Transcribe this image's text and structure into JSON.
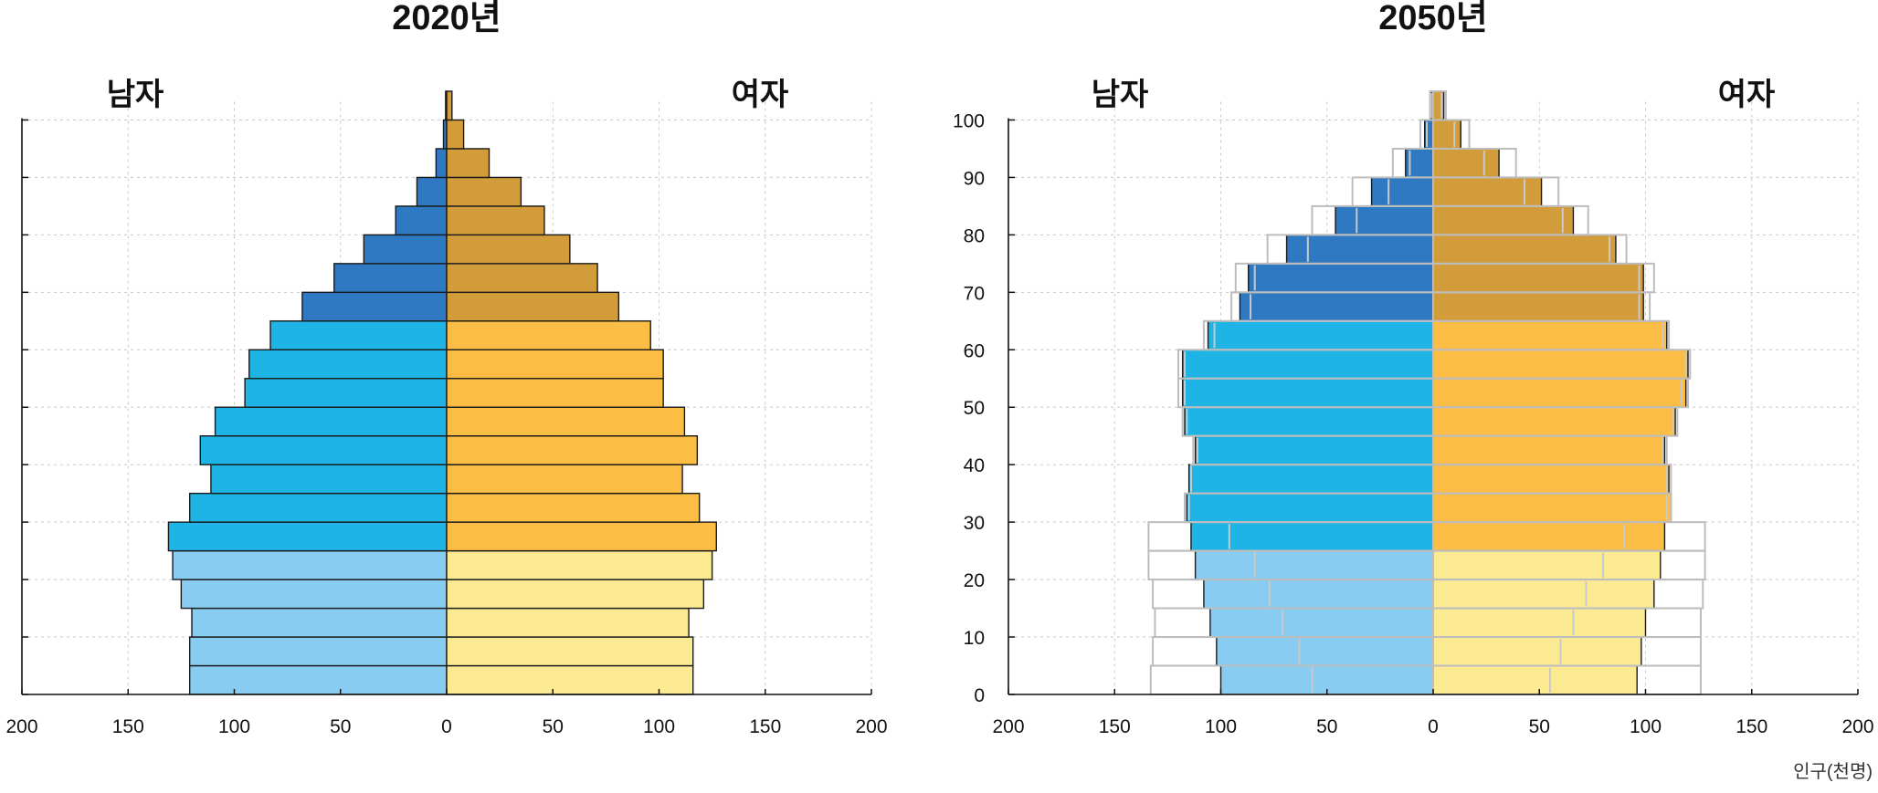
{
  "unit_label": "인구(천명)",
  "chart_data": [
    {
      "type": "bar",
      "orientation": "horizontal",
      "title": "2020년",
      "left_label": "남자",
      "right_label": "여자",
      "xlim": [
        -200,
        200
      ],
      "x_ticks": [
        200,
        150,
        100,
        50,
        0,
        50,
        100,
        150,
        200
      ],
      "y_ticks": [],
      "grid": true,
      "age_group_size": 5,
      "age_groups": [
        "0-4",
        "5-9",
        "10-14",
        "15-19",
        "20-24",
        "25-29",
        "30-34",
        "35-39",
        "40-44",
        "45-49",
        "50-54",
        "55-59",
        "60-64",
        "65-69",
        "70-74",
        "75-79",
        "80-84",
        "85-89",
        "90-94",
        "95-99",
        "100+"
      ],
      "series": [
        {
          "name": "남자",
          "values": [
            121,
            121,
            120,
            125,
            129,
            131,
            121,
            111,
            116,
            109,
            95,
            93,
            83,
            68,
            53,
            39,
            24,
            14,
            5,
            1.5,
            0.5
          ]
        },
        {
          "name": "여자",
          "values": [
            116,
            116,
            114,
            121,
            125,
            127,
            119,
            111,
            118,
            112,
            102,
            102,
            96,
            81,
            71,
            58,
            46,
            35,
            20,
            8,
            2.5
          ]
        }
      ],
      "colors": {
        "male": [
          "#88cdf1",
          "#88cdf1",
          "#88cdf1",
          "#88cdf1",
          "#88cdf1",
          "#1fb4e6",
          "#1fb4e6",
          "#1fb4e6",
          "#1fb4e6",
          "#1fb4e6",
          "#1fb4e6",
          "#1fb4e6",
          "#1fb4e6",
          "#2f79c2",
          "#2f79c2",
          "#2f79c2",
          "#2f79c2",
          "#2f79c2",
          "#2f79c2",
          "#2f79c2",
          "#2f79c2"
        ],
        "female": [
          "#fcea92",
          "#fcea92",
          "#fcea92",
          "#fcea92",
          "#fcea92",
          "#fbbd43",
          "#fbbd43",
          "#fbbd43",
          "#fbbd43",
          "#fbbd43",
          "#fbbd43",
          "#fbbd43",
          "#fbbd43",
          "#d39c3a",
          "#d39c3a",
          "#d39c3a",
          "#d39c3a",
          "#d39c3a",
          "#d39c3a",
          "#d39c3a",
          "#d39c3a"
        ]
      }
    },
    {
      "type": "bar",
      "orientation": "horizontal",
      "title": "2050년",
      "left_label": "남자",
      "right_label": "여자",
      "xlim": [
        -200,
        200
      ],
      "x_ticks": [
        200,
        150,
        100,
        50,
        0,
        50,
        100,
        150,
        200
      ],
      "y_ticks": [
        0,
        10,
        20,
        30,
        40,
        50,
        60,
        70,
        80,
        90,
        100
      ],
      "grid": true,
      "age_group_size": 5,
      "age_groups": [
        "0-4",
        "5-9",
        "10-14",
        "15-19",
        "20-24",
        "25-29",
        "30-34",
        "35-39",
        "40-44",
        "45-49",
        "50-54",
        "55-59",
        "60-64",
        "65-69",
        "70-74",
        "75-79",
        "80-84",
        "85-89",
        "90-94",
        "95-99",
        "100+"
      ],
      "series": [
        {
          "name": "남자",
          "values": [
            100,
            102,
            105,
            108,
            112,
            114,
            116,
            115,
            112,
            117,
            118,
            118,
            106,
            91,
            87,
            69,
            46,
            29,
            13,
            4,
            1
          ]
        },
        {
          "name": "여자",
          "values": [
            96,
            98,
            100,
            104,
            107,
            109,
            112,
            111,
            109,
            114,
            119,
            120,
            110,
            99,
            99,
            86,
            66,
            51,
            31,
            13,
            5
          ]
        },
        {
          "name": "",
          "style": "outline",
          "values": [
            133,
            132,
            131,
            132,
            134,
            134,
            117,
            114,
            113,
            118,
            120,
            120,
            108,
            95,
            93,
            78,
            57,
            38,
            19,
            6,
            1.5
          ]
        },
        {
          "name": "",
          "style": "outline",
          "values": [
            126,
            126,
            126,
            127,
            128,
            128,
            112,
            112,
            110,
            115,
            120,
            121,
            111,
            102,
            104,
            91,
            73,
            59,
            39,
            17,
            6
          ]
        },
        {
          "name": "",
          "style": "inner-line",
          "values": [
            57,
            63,
            71,
            77,
            84,
            96,
            115,
            114,
            111,
            116,
            117,
            117,
            103,
            86,
            84,
            59,
            36,
            21,
            11,
            3,
            1
          ]
        },
        {
          "name": "",
          "style": "inner-line",
          "values": [
            55,
            60,
            66,
            72,
            80,
            90,
            110,
            110,
            108,
            113,
            117,
            119,
            108,
            97,
            97,
            83,
            61,
            43,
            24,
            10,
            4
          ]
        }
      ],
      "colors": {
        "male": [
          "#88cdf1",
          "#88cdf1",
          "#88cdf1",
          "#88cdf1",
          "#88cdf1",
          "#1fb4e6",
          "#1fb4e6",
          "#1fb4e6",
          "#1fb4e6",
          "#1fb4e6",
          "#1fb4e6",
          "#1fb4e6",
          "#1fb4e6",
          "#2f79c2",
          "#2f79c2",
          "#2f79c2",
          "#2f79c2",
          "#2f79c2",
          "#2f79c2",
          "#2f79c2",
          "#2f79c2"
        ],
        "female": [
          "#fcea92",
          "#fcea92",
          "#fcea92",
          "#fcea92",
          "#fcea92",
          "#fbbd43",
          "#fbbd43",
          "#fbbd43",
          "#fbbd43",
          "#fbbd43",
          "#fbbd43",
          "#fbbd43",
          "#fbbd43",
          "#d39c3a",
          "#d39c3a",
          "#d39c3a",
          "#d39c3a",
          "#d39c3a",
          "#d39c3a",
          "#d39c3a",
          "#d39c3a"
        ],
        "outline": "#bdbdbd",
        "inner_line": "#c9c9c9"
      }
    }
  ]
}
